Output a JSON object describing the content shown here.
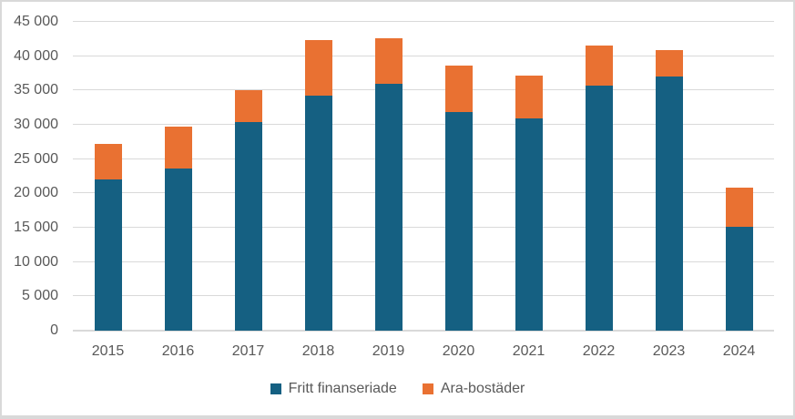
{
  "colors": {
    "series_blue": "#156082",
    "series_orange": "#E97132",
    "gridline": "#D9D9D9",
    "axis_text": "#595959",
    "background": "#FFFFFF",
    "canvas_border": "#D9D9D9"
  },
  "chart_data": {
    "type": "bar",
    "stacked": true,
    "categories": [
      "2015",
      "2016",
      "2017",
      "2018",
      "2019",
      "2020",
      "2021",
      "2022",
      "2023",
      "2024"
    ],
    "series": [
      {
        "name": "Fritt finanseriade",
        "color": "#156082",
        "values": [
          22100,
          23600,
          30400,
          34300,
          36000,
          31800,
          30900,
          35700,
          37100,
          15100
        ]
      },
      {
        "name": "Ara-bostäder",
        "color": "#E97132",
        "values": [
          5100,
          6200,
          4600,
          8100,
          6600,
          6800,
          6300,
          5800,
          3800,
          5800
        ]
      }
    ],
    "stack_totals": [
      27200,
      29800,
      35000,
      42400,
      42600,
      38600,
      37200,
      41500,
      40900,
      20900
    ],
    "ylim": [
      0,
      45000
    ],
    "ytick_step": 5000,
    "ytick_labels": [
      "0",
      "5 000",
      "10 000",
      "15 000",
      "20 000",
      "25 000",
      "30 000",
      "35 000",
      "40 000",
      "45 000"
    ],
    "xlabel": "",
    "ylabel": "",
    "grid": true,
    "legend_position": "bottom"
  }
}
